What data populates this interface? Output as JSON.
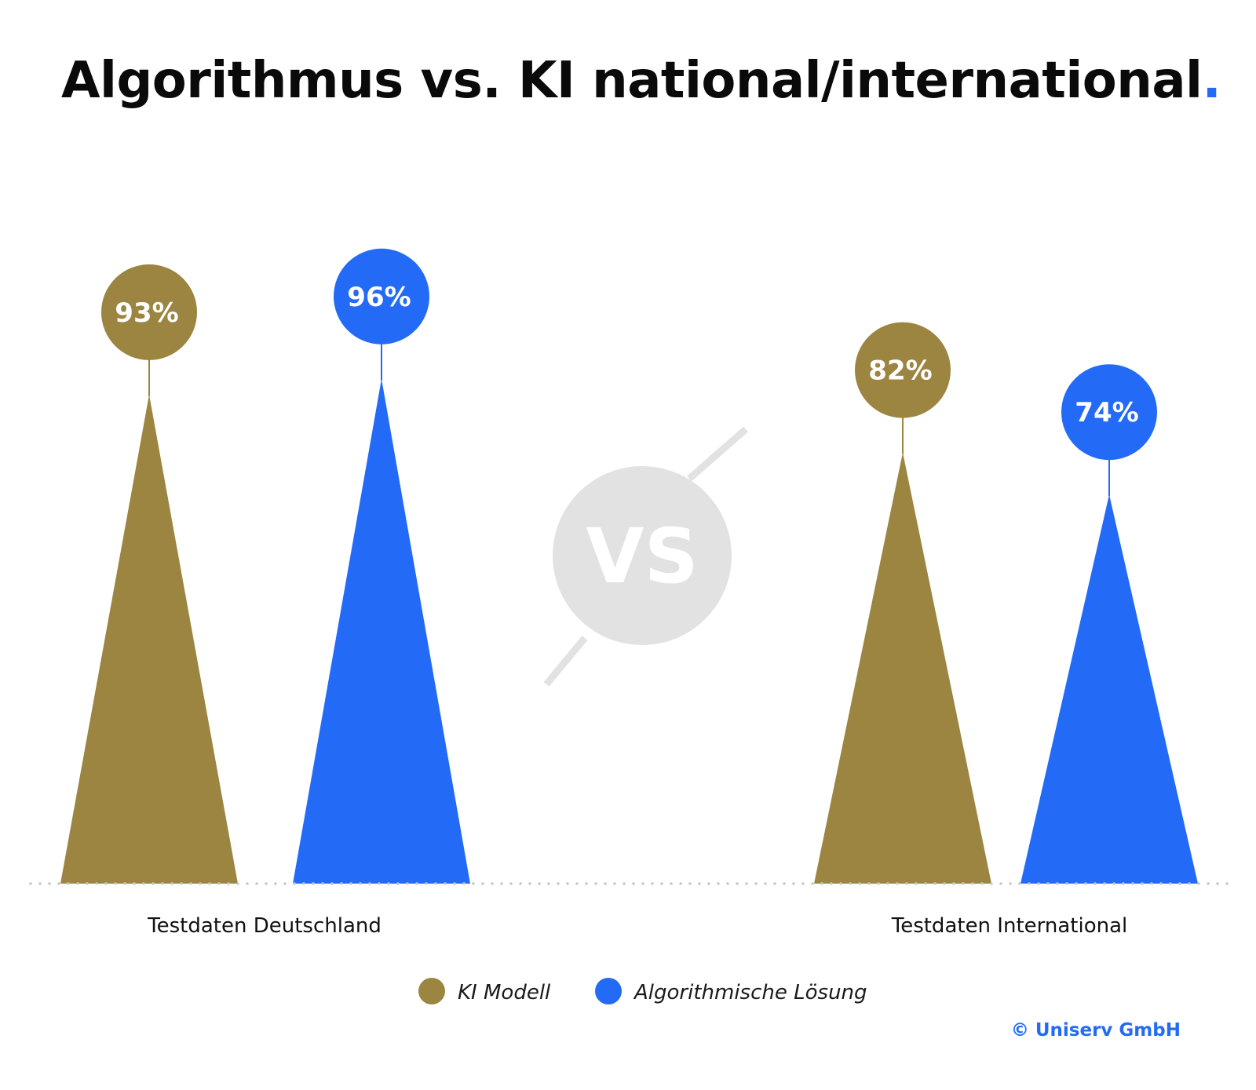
{
  "chart_data": {
    "type": "bar",
    "title": "Algorithmus vs. KI national/international",
    "title_suffix": ".",
    "categories": [
      "Testdaten Deutschland",
      "Testdaten International"
    ],
    "series": [
      {
        "name": "KI Modell",
        "color": "#9b8540",
        "values": [
          93,
          82
        ],
        "labels": [
          "93%",
          "82%"
        ]
      },
      {
        "name": "Algorithmische Lösung",
        "color": "#236bf6",
        "values": [
          96,
          74
        ],
        "labels": [
          "96%",
          "74%"
        ]
      }
    ],
    "center_badge": "VS",
    "legend_position": "bottom-center",
    "grid": false,
    "ylim": [
      0,
      100
    ]
  },
  "copyright": "© Uniserv GmbH",
  "colors": {
    "accent": "#236bf6",
    "gold": "#9b8540",
    "vs_gray": "#e2e2e2",
    "baseline_dots": "#c8c8c8"
  }
}
